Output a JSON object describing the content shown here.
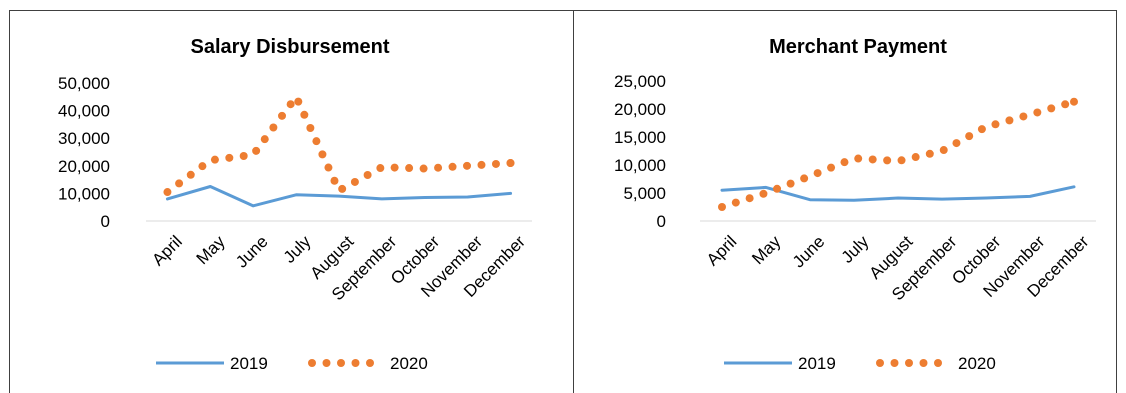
{
  "chart_data": [
    {
      "type": "line",
      "title": "Salary Disbursement",
      "xlabel": "",
      "ylabel": "",
      "categories": [
        "April",
        "May",
        "June",
        "July",
        "August",
        "September",
        "October",
        "November",
        "December"
      ],
      "ylim": [
        0,
        50000
      ],
      "yticks": [
        "0",
        "10,000",
        "20,000",
        "30,000",
        "40,000",
        "50,000"
      ],
      "grid": false,
      "legend": "bottom",
      "series": [
        {
          "name": "2019",
          "values": [
            8000,
            12500,
            5500,
            9500,
            9000,
            8000,
            8500,
            8700,
            10000
          ],
          "color": "#5b9bd5",
          "style": "solid"
        },
        {
          "name": "2020",
          "values": [
            10500,
            22000,
            24000,
            45000,
            11000,
            19500,
            19000,
            20000,
            21000
          ],
          "color": "#ed7d31",
          "style": "dotted"
        }
      ]
    },
    {
      "type": "line",
      "title": "Merchant Payment",
      "xlabel": "",
      "ylabel": "",
      "categories": [
        "April",
        "May",
        "June",
        "July",
        "August",
        "September",
        "October",
        "November",
        "December"
      ],
      "ylim": [
        0,
        25000
      ],
      "yticks": [
        "0",
        "5,000",
        "10,000",
        "15,000",
        "20,000",
        "25,000"
      ],
      "grid": false,
      "legend": "bottom",
      "series": [
        {
          "name": "2019",
          "values": [
            5500,
            6000,
            3800,
            3700,
            4100,
            3900,
            4100,
            4400,
            6100
          ],
          "color": "#5b9bd5",
          "style": "solid"
        },
        {
          "name": "2020",
          "values": [
            2500,
            5000,
            8000,
            11200,
            10700,
            12500,
            16800,
            19000,
            21300
          ],
          "color": "#ed7d31",
          "style": "dotted"
        }
      ]
    }
  ]
}
